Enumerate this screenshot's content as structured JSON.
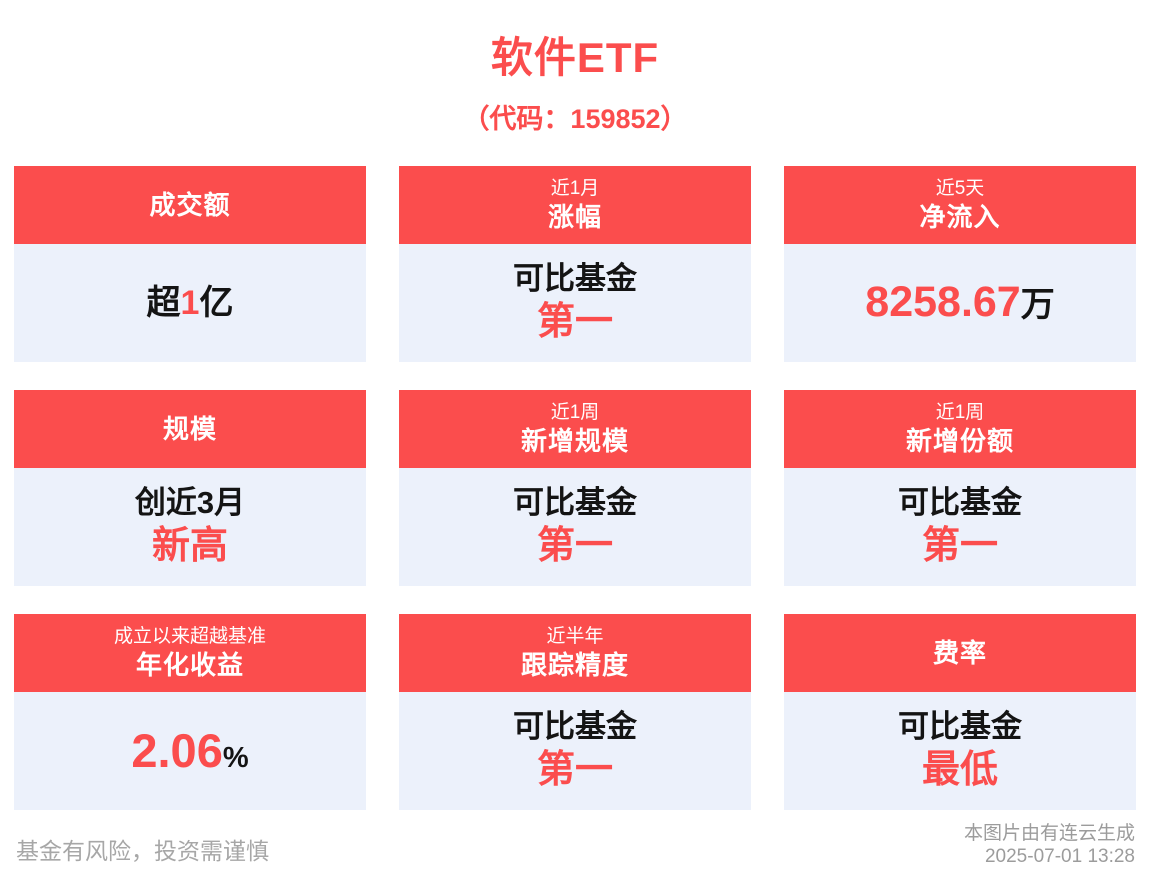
{
  "page": {
    "title": "软件ETF",
    "subtitle": "（代码：159852）",
    "footer_left": "基金有风险，投资需谨慎",
    "footer_right_line1": "本图片由有连云生成",
    "footer_right_line2": "2025-07-01 13:28"
  },
  "colors": {
    "accent_red": "#FB4D4D",
    "card_body_bg": "#ECF1FB",
    "dark_text": "#141414",
    "footer_gray": "#A7A7A7"
  },
  "cards": [
    {
      "id": "turnover",
      "header_small": "",
      "header_main": "成交额",
      "value": {
        "prefix": "超",
        "accent": "1",
        "suffix": "亿",
        "line2": ""
      }
    },
    {
      "id": "1m-gain",
      "header_small": "近1月",
      "header_main": "涨幅",
      "value": {
        "prefix": "可比基金",
        "accent": "",
        "suffix": "",
        "line2": "第一"
      }
    },
    {
      "id": "5d-net-inflow",
      "header_small": "近5天",
      "header_main": "净流入",
      "value": {
        "prefix": "",
        "accent": "8258.67",
        "suffix": "万",
        "line2": ""
      }
    },
    {
      "id": "scale",
      "header_small": "",
      "header_main": "规模",
      "value": {
        "prefix": "创近3月",
        "accent": "",
        "suffix": "",
        "line2": "新高"
      }
    },
    {
      "id": "1w-new-scale",
      "header_small": "近1周",
      "header_main": "新增规模",
      "value": {
        "prefix": "可比基金",
        "accent": "",
        "suffix": "",
        "line2": "第一"
      }
    },
    {
      "id": "1w-new-shares",
      "header_small": "近1周",
      "header_main": "新增份额",
      "value": {
        "prefix": "可比基金",
        "accent": "",
        "suffix": "",
        "line2": "第一"
      }
    },
    {
      "id": "annualized-return",
      "header_small": "成立以来超越基准",
      "header_main": "年化收益",
      "value": {
        "prefix": "",
        "accent": "2.06",
        "suffix": "%",
        "line2": ""
      }
    },
    {
      "id": "tracking-precision",
      "header_small": "近半年",
      "header_main": "跟踪精度",
      "value": {
        "prefix": "可比基金",
        "accent": "",
        "suffix": "",
        "line2": "第一"
      }
    },
    {
      "id": "fee-rate",
      "header_small": "",
      "header_main": "费率",
      "value": {
        "prefix": "可比基金",
        "accent": "",
        "suffix": "",
        "line2": "最低"
      }
    }
  ]
}
